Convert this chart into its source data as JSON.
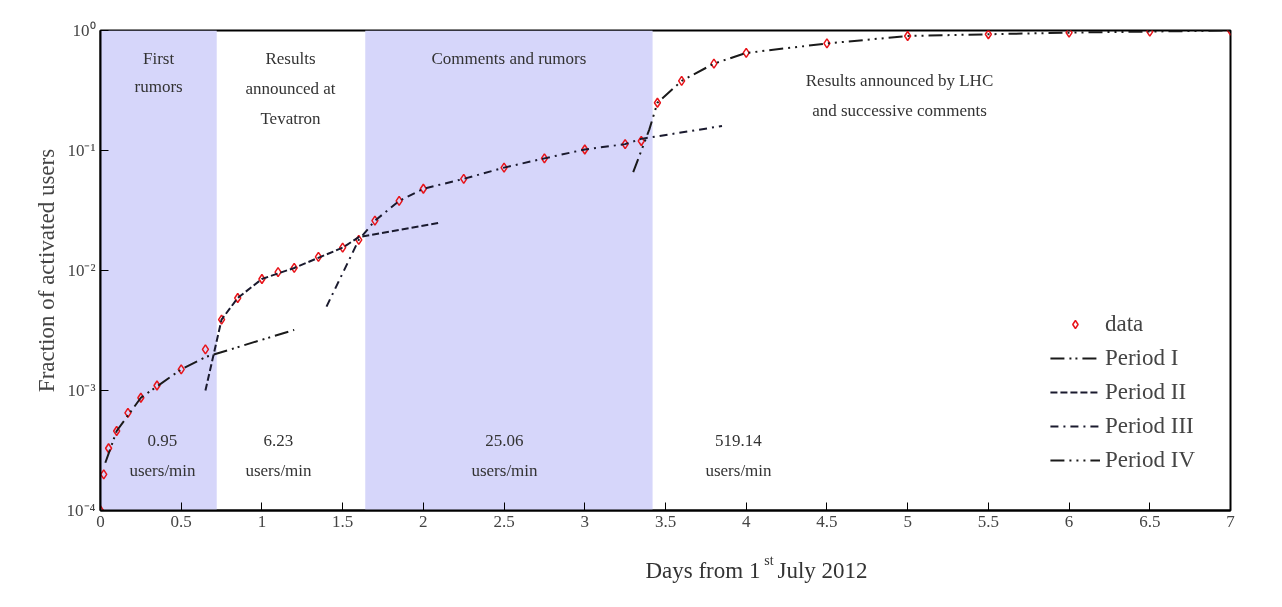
{
  "chart_data": {
    "type": "scatter",
    "xlabel": "Days from 1$^{st}$ July 2012",
    "ylabel": "Fraction of activated users",
    "xlim": [
      0,
      7
    ],
    "xticks": [
      0,
      0.5,
      1,
      1.5,
      2,
      2.5,
      3,
      3.5,
      4,
      4.5,
      5,
      5.5,
      6,
      6.5,
      7
    ],
    "ylim": [
      0.0001,
      1
    ],
    "log": true,
    "yticks": [
      {
        "value": 0.0001,
        "label": "10⁻⁴"
      },
      {
        "value": 0.001,
        "label": "10⁻³"
      },
      {
        "value": 0.01,
        "label": "10⁻²"
      },
      {
        "value": 0.1,
        "label": "10⁻¹"
      },
      {
        "value": 1,
        "label": "10⁰"
      }
    ],
    "legend": "bottom right",
    "grid": false,
    "series": [
      {
        "name": "data",
        "marker": "diamond",
        "color": "#e8141a",
        "x": [
          0,
          0.02,
          0.05,
          0.1,
          0.17,
          0.25,
          0.35,
          0.5,
          0.65,
          0.75,
          0.85,
          1.0,
          1.1,
          1.2,
          1.35,
          1.5,
          1.6,
          1.7,
          1.85,
          2.0,
          2.25,
          2.5,
          2.75,
          3.0,
          3.25,
          3.35,
          3.45,
          3.6,
          3.8,
          4.0,
          4.5,
          5.0,
          5.5,
          6.0,
          6.5,
          7.0
        ],
        "values": [
          0.0001,
          0.0002,
          0.00033,
          0.00046,
          0.00065,
          0.00087,
          0.0011,
          0.0015,
          0.0022,
          0.0039,
          0.0059,
          0.0085,
          0.0097,
          0.0105,
          0.013,
          0.0155,
          0.018,
          0.026,
          0.038,
          0.048,
          0.058,
          0.072,
          0.086,
          0.102,
          0.113,
          0.12,
          0.25,
          0.38,
          0.53,
          0.65,
          0.78,
          0.9,
          0.93,
          0.96,
          0.98,
          1.0
        ]
      },
      {
        "name": "Period I",
        "type": "line",
        "line_style": "dashdotdot",
        "color": "#1a1a1a",
        "x": [
          0.03,
          0.1,
          0.25,
          0.5,
          0.65,
          1.2
        ],
        "values": [
          0.00025,
          0.00046,
          0.00087,
          0.0015,
          0.0019,
          0.0032
        ]
      },
      {
        "name": "Period II",
        "type": "line",
        "line_style": "dashed",
        "color": "#1a1a2e",
        "x": [
          0.65,
          0.75,
          0.85,
          1.0,
          1.2,
          1.5,
          1.6,
          2.1
        ],
        "values": [
          0.001,
          0.0039,
          0.0059,
          0.0085,
          0.0105,
          0.0155,
          0.019,
          0.025
        ]
      },
      {
        "name": "Period III",
        "type": "line",
        "line_style": "dashdot",
        "color": "#1a1a2e",
        "x": [
          1.4,
          1.6,
          1.7,
          1.85,
          2.0,
          2.25,
          2.5,
          2.75,
          3.0,
          3.25,
          3.35,
          3.85
        ],
        "values": [
          0.005,
          0.018,
          0.026,
          0.038,
          0.048,
          0.058,
          0.072,
          0.086,
          0.102,
          0.113,
          0.125,
          0.16
        ]
      },
      {
        "name": "Period IV",
        "type": "line",
        "line_style": "longdashdot",
        "color": "#1a1a1a",
        "x": [
          3.3,
          3.4,
          3.45,
          3.6,
          3.8,
          4.0,
          4.5,
          5.0,
          5.5,
          6.0,
          6.5,
          7.0
        ],
        "values": [
          0.066,
          0.15,
          0.25,
          0.38,
          0.53,
          0.65,
          0.78,
          0.9,
          0.93,
          0.96,
          0.98,
          1.0
        ]
      }
    ],
    "bands": [
      {
        "axis": "x",
        "from": 0,
        "to": 0.72,
        "label": "First\nrumors",
        "color": "#d6d6fa"
      },
      {
        "axis": "x",
        "from": 1.64,
        "to": 3.42,
        "label": "Comments and rumors",
        "color": "#d6d6fa"
      }
    ],
    "annotations": [
      "Results\nannounced at\nTevatron",
      "Results announced by LHC\nand successive comments",
      "0.95\nusers/min",
      "6.23\nusers/min",
      "25.06\nusers/min",
      "519.14\nusers/min"
    ]
  }
}
